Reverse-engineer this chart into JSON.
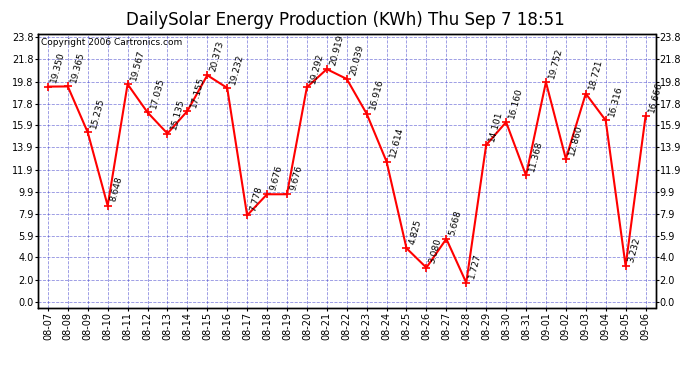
{
  "title": "DailySolar Energy Production (KWh) Thu Sep 7 18:51",
  "copyright": "Copyright 2006 Cartronics.com",
  "x_labels": [
    "08-07",
    "08-08",
    "08-09",
    "08-10",
    "08-11",
    "08-12",
    "08-13",
    "08-14",
    "08-15",
    "08-16",
    "08-17",
    "08-18",
    "08-19",
    "08-20",
    "08-21",
    "08-22",
    "08-23",
    "08-24",
    "08-25",
    "08-26",
    "08-27",
    "08-28",
    "08-29",
    "08-30",
    "08-31",
    "09-01",
    "09-02",
    "09-03",
    "09-04",
    "09-05",
    "09-06"
  ],
  "y_values": [
    19.35,
    19.365,
    15.235,
    8.648,
    19.567,
    17.035,
    15.135,
    17.155,
    20.373,
    19.232,
    7.778,
    9.676,
    9.676,
    19.292,
    20.919,
    20.039,
    16.916,
    12.614,
    4.825,
    3.08,
    5.668,
    1.727,
    14.101,
    16.16,
    11.368,
    19.752,
    12.86,
    18.721,
    16.316,
    3.232,
    16.666
  ],
  "y_tick_vals": [
    0.0,
    2.0,
    4.0,
    5.9,
    7.9,
    9.9,
    11.9,
    13.9,
    15.9,
    17.8,
    19.8,
    21.8,
    23.8
  ],
  "y_min": 0.0,
  "y_max": 23.8,
  "line_color": "red",
  "marker_color": "red",
  "bg_color": "white",
  "plot_bg_color": "white",
  "grid_color": "#4444cc",
  "grid_style": "--",
  "grid_alpha": 0.6,
  "title_fontsize": 12,
  "label_fontsize": 7,
  "annotation_fontsize": 6.5,
  "copyright_fontsize": 6.5,
  "marker_size": 4,
  "line_width": 1.5
}
